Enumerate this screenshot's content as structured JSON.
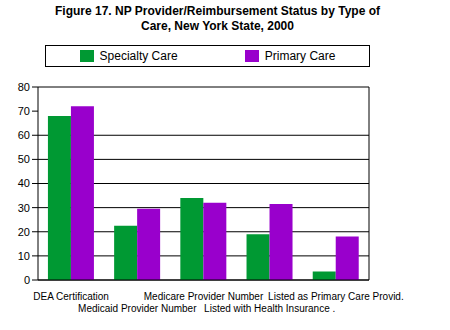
{
  "chart_data": {
    "type": "bar",
    "title": "Figure 17. NP Provider/Reimbursement Status by Type of Care, New York State, 2000",
    "categories": [
      "DEA Certification",
      "Medicaid Provider Number",
      "Medicare Provider Number",
      "Listed with Health Insurance .",
      "Listed as Primary Care Provid."
    ],
    "series": [
      {
        "name": "Specialty Care",
        "color": "#009933",
        "values": [
          68,
          22.5,
          34,
          19,
          3.5
        ]
      },
      {
        "name": "Primary Care",
        "color": "#9900cc",
        "values": [
          72,
          29.5,
          32,
          31.5,
          18
        ]
      }
    ],
    "ylim": [
      0,
      80
    ],
    "yticks": [
      0,
      10,
      20,
      30,
      40,
      50,
      60,
      70,
      80
    ],
    "grid": true,
    "legend": "top"
  }
}
